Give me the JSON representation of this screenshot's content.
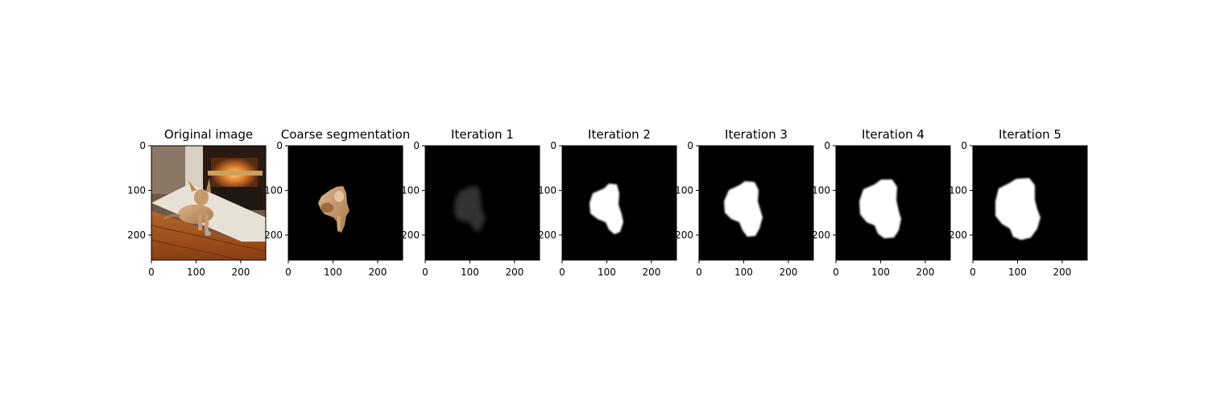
{
  "figure": {
    "background": "#ffffff",
    "frame_color": "#000000"
  },
  "chart_data": [
    {
      "type": "image",
      "title": "Original image",
      "content": "photo of a small tan dog lying on a wooden floor in front of a fireplace",
      "xticks": [
        0,
        100,
        200
      ],
      "yticks": [
        0,
        100,
        200
      ],
      "xlim": [
        0,
        256
      ],
      "ylim": [
        256,
        0
      ]
    },
    {
      "type": "image",
      "title": "Coarse segmentation",
      "content": "dog cut-out on black background",
      "xticks": [
        0,
        100,
        200
      ],
      "yticks": [
        0,
        100,
        200
      ],
      "xlim": [
        0,
        256
      ],
      "ylim": [
        256,
        0
      ]
    },
    {
      "type": "image",
      "title": "Iteration 1",
      "content": "faint grey mask on black background",
      "mask_intensity": 0.2,
      "xticks": [
        0,
        100,
        200
      ],
      "yticks": [
        0,
        100,
        200
      ],
      "xlim": [
        0,
        256
      ],
      "ylim": [
        256,
        0
      ]
    },
    {
      "type": "image",
      "title": "Iteration 2",
      "content": "white mask on black background",
      "mask_intensity": 1.0,
      "xticks": [
        0,
        100,
        200
      ],
      "yticks": [
        0,
        100,
        200
      ],
      "xlim": [
        0,
        256
      ],
      "ylim": [
        256,
        0
      ]
    },
    {
      "type": "image",
      "title": "Iteration 3",
      "content": "white mask on black background",
      "mask_intensity": 1.0,
      "xticks": [
        0,
        100,
        200
      ],
      "yticks": [
        0,
        100,
        200
      ],
      "xlim": [
        0,
        256
      ],
      "ylim": [
        256,
        0
      ]
    },
    {
      "type": "image",
      "title": "Iteration 4",
      "content": "white mask on black background",
      "mask_intensity": 1.0,
      "xticks": [
        0,
        100,
        200
      ],
      "yticks": [
        0,
        100,
        200
      ],
      "xlim": [
        0,
        256
      ],
      "ylim": [
        256,
        0
      ]
    },
    {
      "type": "image",
      "title": "Iteration 5",
      "content": "white mask on black background",
      "mask_intensity": 1.0,
      "xticks": [
        0,
        100,
        200
      ],
      "yticks": [
        0,
        100,
        200
      ],
      "xlim": [
        0,
        256
      ],
      "ylim": [
        256,
        0
      ]
    }
  ]
}
